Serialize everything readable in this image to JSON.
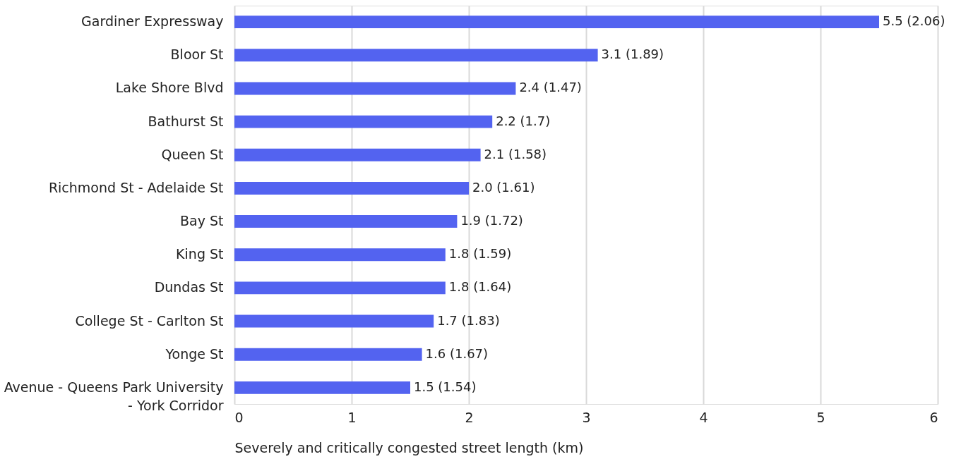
{
  "chart_data": {
    "type": "bar",
    "orientation": "horizontal",
    "xlabel": "Severely and critically congested street length (km)",
    "categories": [
      "Gardiner Expressway",
      "Bloor St",
      "Lake Shore Blvd",
      "Bathurst St",
      "Queen St",
      "Richmond St - Adelaide St",
      "Bay St",
      "King St",
      "Dundas St",
      "College St - Carlton St",
      "Yonge St",
      "Avenue - Queens Park University - York Corridor"
    ],
    "values": [
      5.5,
      3.1,
      2.4,
      2.2,
      2.1,
      2.0,
      1.9,
      1.8,
      1.8,
      1.7,
      1.6,
      1.5
    ],
    "value_labels": [
      "5.5 (2.06)",
      "3.1 (1.89)",
      "2.4 (1.47)",
      "2.2 (1.7)",
      "2.1 (1.58)",
      "2.0 (1.61)",
      "1.9 (1.72)",
      "1.8 (1.59)",
      "1.8 (1.64)",
      "1.7 (1.83)",
      "1.6 (1.67)",
      "1.5 (1.54)"
    ],
    "color": "#5363f0",
    "xlim": [
      0,
      6
    ],
    "xticks": [
      0,
      1,
      2,
      3,
      4,
      5,
      6
    ],
    "grid": "x"
  }
}
